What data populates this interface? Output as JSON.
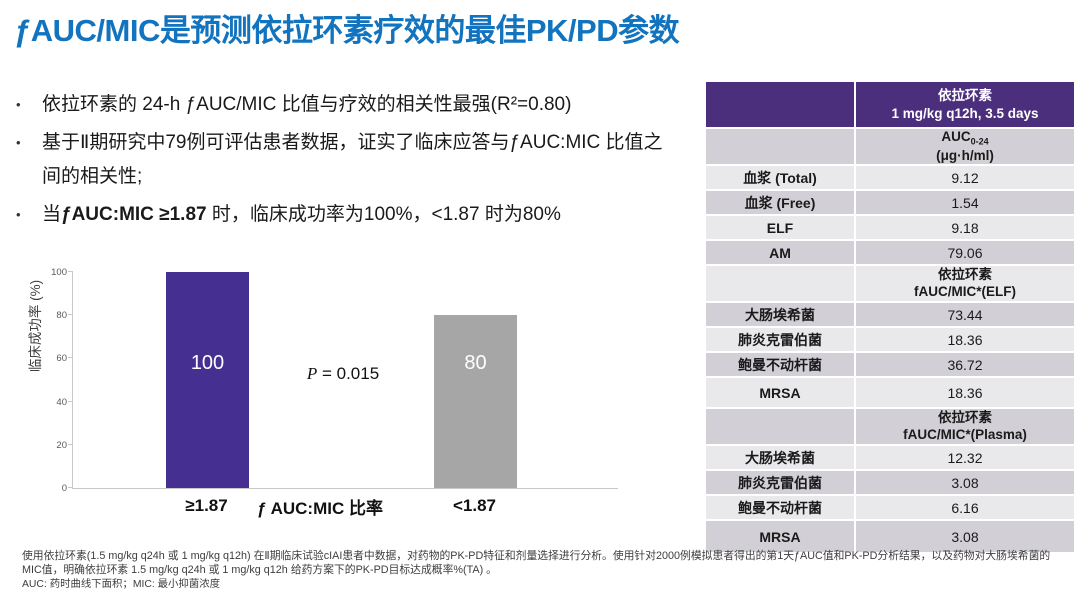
{
  "title": {
    "text": "ƒAUC/MIC是预测依拉环素疗效的最佳PK/PD参数"
  },
  "bullets": {
    "b1": "依拉环素的 24-h ƒAUC/MIC 比值与疗效的相关性最强(R²=0.80)",
    "b2": "基于Ⅱ期研究中79例可评估患者数据，证实了临床应答与ƒAUC:MIC 比值之间的相关性;",
    "b3_pre": "当",
    "b3_bold": "ƒAUC:MIC ≥1.87",
    "b3_post": " 时，临床成功率为100%，<1.87 时为80%"
  },
  "chart_data": {
    "type": "bar",
    "categories": [
      "≥1.87",
      "<1.87"
    ],
    "values": [
      100,
      80
    ],
    "bar_labels": [
      "100",
      "80"
    ],
    "bar_colors": [
      "#453092",
      "#A6A6A6"
    ],
    "title": "",
    "xlabel": "ƒ AUC:MIC 比率",
    "ylabel": "临床成功率 (%)",
    "ylim": [
      0,
      100
    ],
    "yticks": [
      0,
      20,
      40,
      60,
      80,
      100
    ],
    "grid": "off",
    "annotation": {
      "p": "P",
      "rest": " = 0.015"
    }
  },
  "table": {
    "header": {
      "line1": "依拉环素",
      "line2": "1 mg/kg q12h, 3.5 days"
    },
    "rows": [
      {
        "type": "subheader",
        "line1": "AUC",
        "sub": "0-24",
        "line2": "(μg·h/ml)"
      },
      {
        "type": "data",
        "label": "血浆 (Total)",
        "value": "9.12"
      },
      {
        "type": "data",
        "label": "血浆 (Free)",
        "value": "1.54"
      },
      {
        "type": "data",
        "label": "ELF",
        "value": "9.18"
      },
      {
        "type": "data",
        "label": "AM",
        "value": "79.06"
      },
      {
        "type": "subheader",
        "line1": "依拉环素",
        "line2": "fAUC/MIC*(ELF)"
      },
      {
        "type": "data",
        "label": "大肠埃希菌",
        "value": "73.44"
      },
      {
        "type": "data",
        "label": "肺炎克雷伯菌",
        "value": "18.36"
      },
      {
        "type": "data",
        "label": "鲍曼不动杆菌",
        "value": "36.72"
      },
      {
        "type": "data",
        "label": "MRSA",
        "value": "18.36"
      },
      {
        "type": "subheader",
        "line1": "依拉环素",
        "line2": "fAUC/MIC*(Plasma)"
      },
      {
        "type": "data",
        "label": "大肠埃希菌",
        "value": "12.32"
      },
      {
        "type": "data",
        "label": "肺炎克雷伯菌",
        "value": "3.08"
      },
      {
        "type": "data",
        "label": "鲍曼不动杆菌",
        "value": "6.16"
      },
      {
        "type": "data",
        "label": "MRSA",
        "value": "3.08"
      }
    ]
  },
  "footer": {
    "line1": "使用依拉环素(1.5 mg/kg q24h 或 1 mg/kg q12h) 在Ⅱ期临床试验cIAI患者中数据，对药物的PK-PD特征和剂量选择进行分析。使用针对2000例模拟患者得出的第1天ƒAUC值和PK-PD分析结果，以及药物对大肠埃希菌的",
    "line2": "MIC值，明确依拉环素 1.5 mg/kg q24h 或 1 mg/kg q12h 给药方案下的PK-PD目标达成概率%(TA) 。",
    "line3": "AUC: 药时曲线下面积；MIC: 最小抑菌浓度"
  },
  "colors": {
    "title_blue": "#1273BE",
    "table_header_purple": "#4B2F7D",
    "band_dark": "#D2D0D6",
    "band_light": "#E9E8EB",
    "bar_purple": "#453092",
    "bar_gray": "#A6A6A6"
  }
}
